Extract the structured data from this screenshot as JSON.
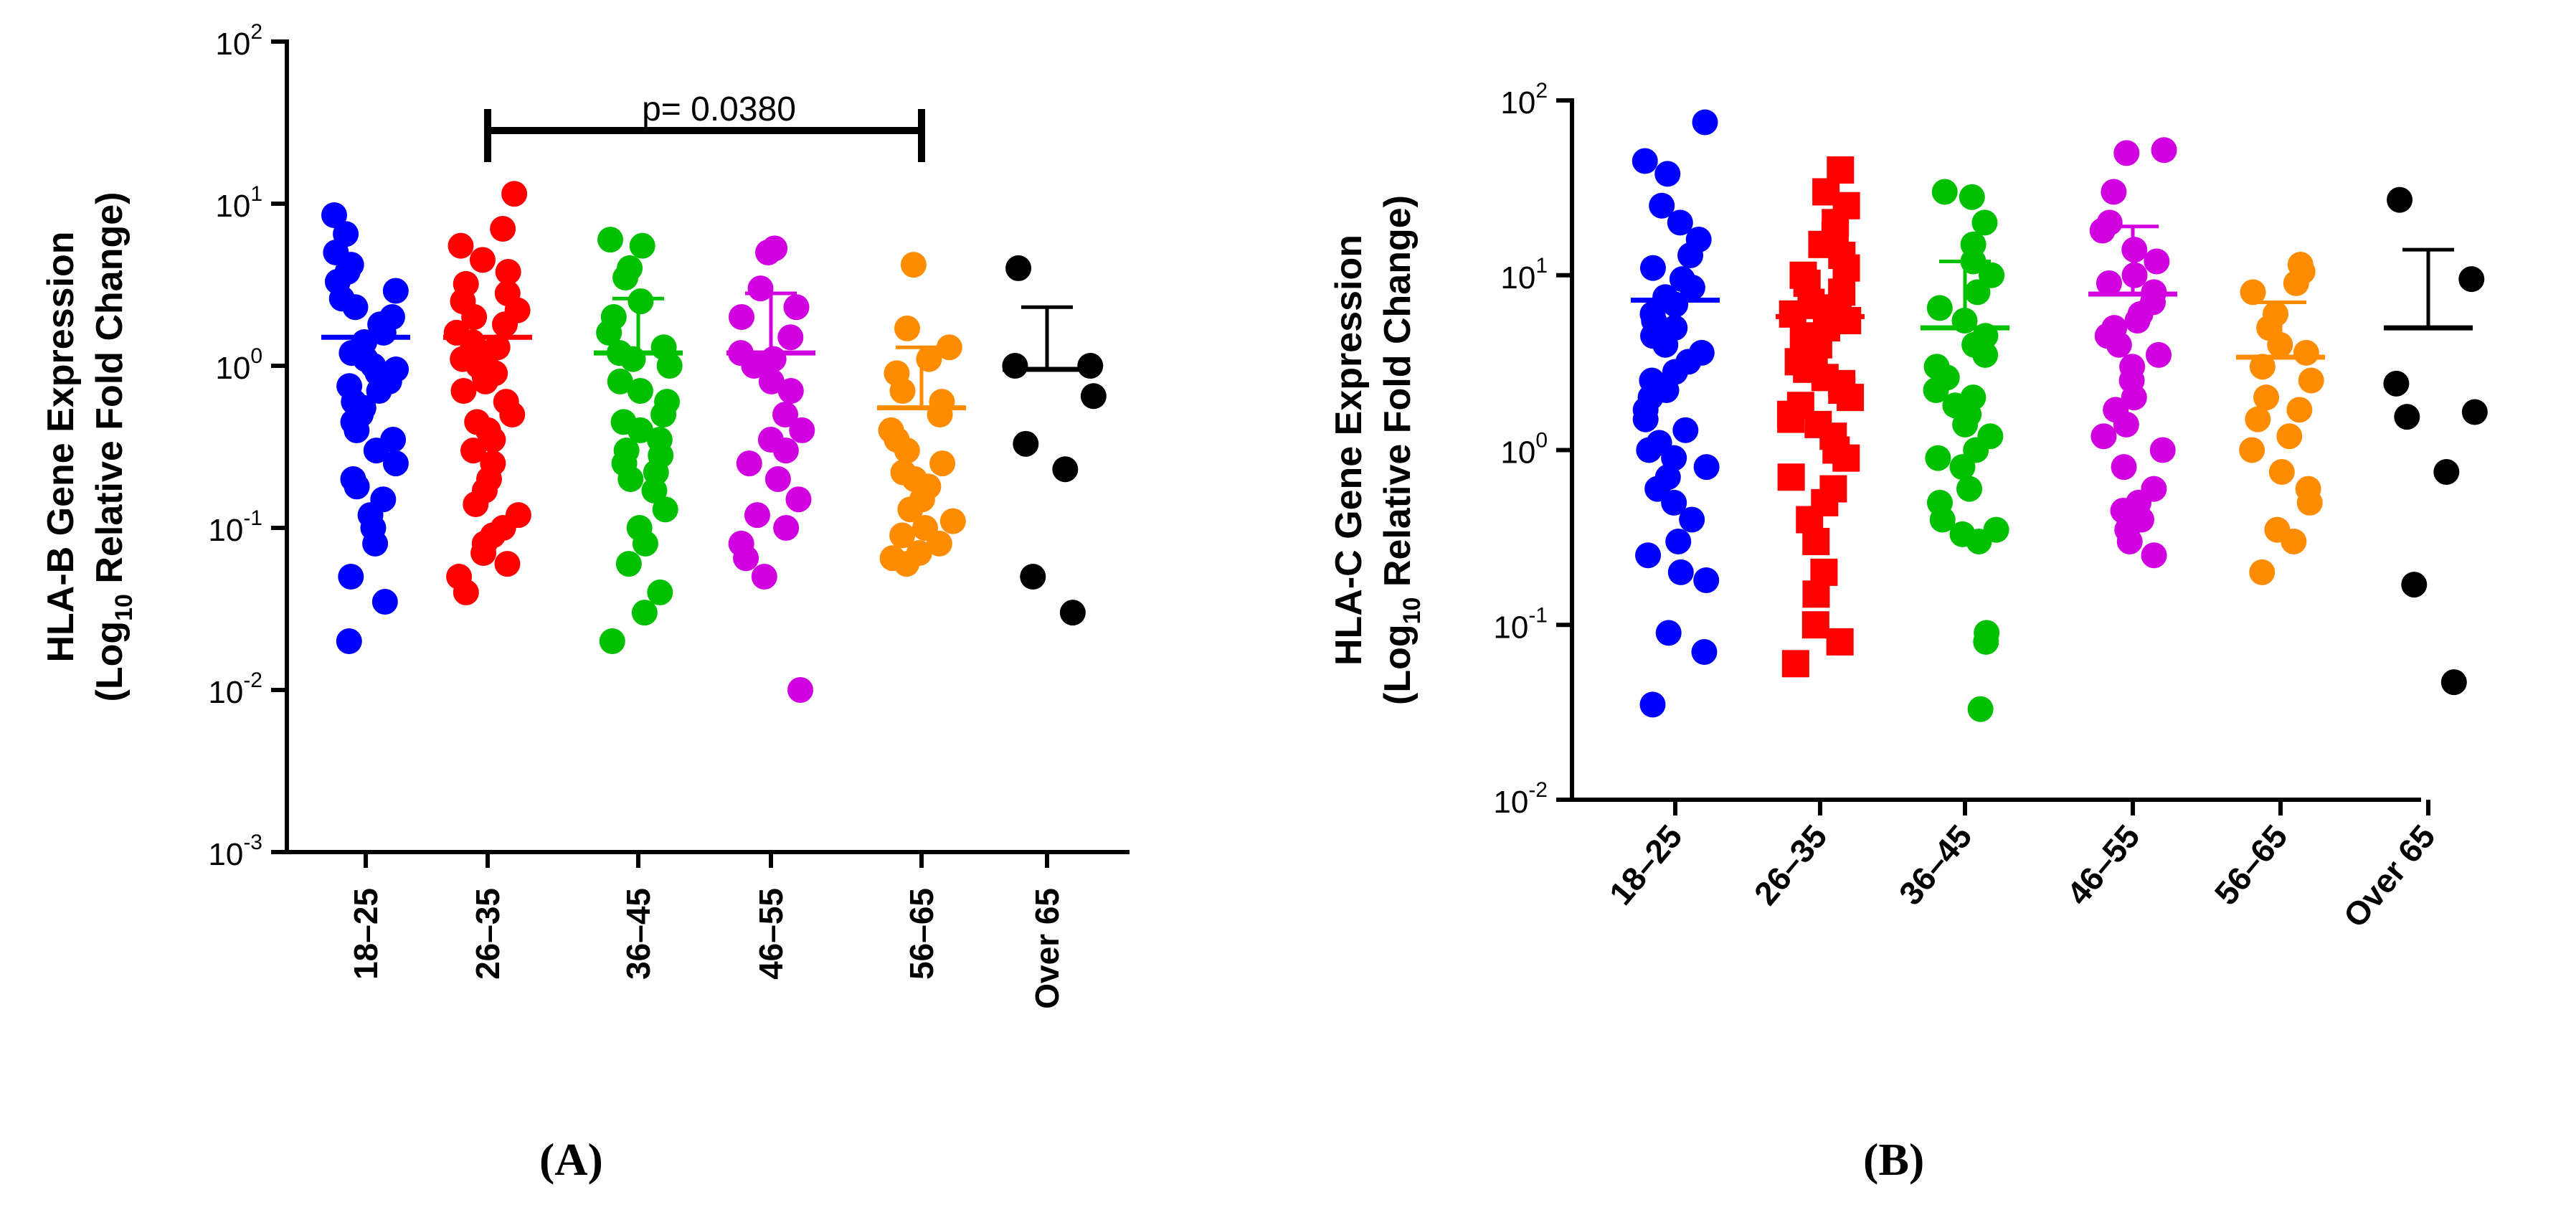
{
  "chart_data": [
    {
      "panel": "A",
      "type": "scatter",
      "scale": "log10",
      "ylim_exponents": [
        -3,
        2
      ],
      "ylabel_line1": "HLA-B Gene Expression",
      "ylabel_line2_pre": "(Log",
      "ylabel_line2_sub": "10",
      "ylabel_line2_post": " Relative Fold Change)",
      "categories": [
        "18–25",
        "26–35",
        "36–45",
        "46–55",
        "56–65",
        "Over 65"
      ],
      "colors": [
        "#0000ff",
        "#ff0000",
        "#00c000",
        "#d000e0",
        "#ff8c00",
        "#000000"
      ],
      "markers": [
        "circle",
        "circle",
        "circle",
        "circle",
        "circle",
        "circle"
      ],
      "means": [
        1.5,
        1.5,
        1.2,
        1.2,
        0.55,
        0.95
      ],
      "sd_upper": [
        null,
        null,
        2.6,
        2.8,
        1.3,
        2.3
      ],
      "values": [
        [
          8.5,
          6.5,
          5.0,
          4.2,
          3.8,
          3.3,
          2.9,
          2.6,
          2.3,
          2.0,
          1.8,
          1.6,
          1.4,
          1.2,
          1.1,
          1.0,
          0.95,
          0.9,
          0.85,
          0.8,
          0.75,
          0.7,
          0.6,
          0.55,
          0.5,
          0.45,
          0.4,
          0.35,
          0.3,
          0.25,
          0.2,
          0.18,
          0.15,
          0.12,
          0.1,
          0.08,
          0.05,
          0.035,
          0.02
        ],
        [
          11.5,
          7.0,
          5.5,
          4.5,
          3.8,
          3.2,
          2.8,
          2.5,
          2.2,
          2.0,
          1.8,
          1.6,
          1.4,
          1.3,
          1.2,
          1.1,
          1.0,
          0.9,
          0.85,
          0.8,
          0.7,
          0.6,
          0.5,
          0.45,
          0.4,
          0.35,
          0.3,
          0.25,
          0.2,
          0.17,
          0.14,
          0.12,
          0.1,
          0.09,
          0.08,
          0.07,
          0.06,
          0.05,
          0.04
        ],
        [
          6.0,
          5.5,
          4.0,
          3.5,
          2.5,
          2.0,
          1.6,
          1.3,
          1.2,
          1.1,
          1.0,
          0.8,
          0.7,
          0.6,
          0.5,
          0.45,
          0.4,
          0.35,
          0.3,
          0.28,
          0.25,
          0.22,
          0.2,
          0.17,
          0.13,
          0.1,
          0.08,
          0.06,
          0.04,
          0.03,
          0.02
        ],
        [
          5.3,
          5.0,
          3.0,
          2.3,
          2.0,
          1.5,
          1.2,
          1.1,
          1.0,
          0.8,
          0.7,
          0.5,
          0.4,
          0.35,
          0.3,
          0.25,
          0.2,
          0.15,
          0.12,
          0.1,
          0.08,
          0.065,
          0.05,
          0.01
        ],
        [
          4.2,
          1.7,
          1.3,
          1.1,
          0.9,
          0.7,
          0.6,
          0.5,
          0.4,
          0.35,
          0.3,
          0.25,
          0.22,
          0.2,
          0.18,
          0.15,
          0.13,
          0.11,
          0.1,
          0.09,
          0.08,
          0.07,
          0.065,
          0.06
        ],
        [
          4.0,
          1.0,
          1.0,
          0.65,
          0.33,
          0.23,
          0.05,
          0.03
        ]
      ],
      "annotation": {
        "label": "p= 0.0380",
        "from": "26–35",
        "to": "56–65"
      }
    },
    {
      "panel": "B",
      "type": "scatter",
      "scale": "log10",
      "ylim_exponents": [
        -2,
        2
      ],
      "ylabel_line1": "HLA-C Gene Expression",
      "ylabel_line2_pre": "(Log",
      "ylabel_line2_sub": "10",
      "ylabel_line2_post": " Relative Fold Change)",
      "categories": [
        "18–25",
        "26–35",
        "36–45",
        "46–55",
        "56–65",
        "Over 65"
      ],
      "colors": [
        "#0000ff",
        "#ff0000",
        "#00c000",
        "#d000e0",
        "#ff8c00",
        "#000000"
      ],
      "markers": [
        "circle",
        "square",
        "circle",
        "circle",
        "circle",
        "circle"
      ],
      "means": [
        7.2,
        5.8,
        5.0,
        7.8,
        3.4,
        5.0
      ],
      "sd_upper": [
        null,
        null,
        12.0,
        19.0,
        7.0,
        14.0
      ],
      "values": [
        [
          75,
          45,
          38,
          25,
          20,
          16,
          13,
          11,
          9.5,
          8.5,
          7.5,
          6.8,
          6.0,
          5.5,
          5.0,
          4.5,
          4.0,
          3.6,
          3.2,
          2.8,
          2.5,
          2.2,
          2.0,
          1.7,
          1.5,
          1.3,
          1.1,
          1.0,
          0.9,
          0.8,
          0.7,
          0.6,
          0.5,
          0.4,
          0.3,
          0.25,
          0.2,
          0.18,
          0.09,
          0.07,
          0.035
        ],
        [
          40,
          30,
          25,
          20,
          17,
          15,
          13,
          11,
          10,
          9,
          8,
          7,
          6.5,
          6,
          5.5,
          5,
          4.5,
          4,
          3.6,
          3.2,
          2.9,
          2.6,
          2.4,
          2.2,
          2.0,
          1.8,
          1.6,
          1.5,
          1.4,
          1.2,
          1.0,
          0.9,
          0.7,
          0.6,
          0.5,
          0.4,
          0.3,
          0.2,
          0.15,
          0.1,
          0.08,
          0.06
        ],
        [
          30,
          28,
          20,
          15,
          12,
          10,
          8,
          6.5,
          5.5,
          4.5,
          4.0,
          3.5,
          3.0,
          2.6,
          2.2,
          2.0,
          1.8,
          1.6,
          1.4,
          1.2,
          1.0,
          0.9,
          0.8,
          0.6,
          0.5,
          0.4,
          0.35,
          0.33,
          0.3,
          0.09,
          0.08,
          0.033
        ],
        [
          52,
          50,
          30,
          20,
          18,
          14,
          12,
          10,
          9,
          8,
          7,
          6,
          5.5,
          5,
          4.5,
          4,
          3.5,
          3,
          2.5,
          2.0,
          1.7,
          1.4,
          1.2,
          1.0,
          0.8,
          0.6,
          0.5,
          0.45,
          0.4,
          0.35,
          0.3,
          0.25
        ],
        [
          11.5,
          10.5,
          9.0,
          8.0,
          6.0,
          5.0,
          4.0,
          3.6,
          3.0,
          2.5,
          2.0,
          1.7,
          1.5,
          1.2,
          1.0,
          0.75,
          0.6,
          0.5,
          0.35,
          0.3,
          0.2
        ],
        [
          27,
          9.5,
          2.4,
          1.65,
          1.55,
          0.75,
          0.17,
          0.047
        ]
      ]
    }
  ],
  "panel_labels": {
    "a": "(A)",
    "b": "(B)"
  }
}
